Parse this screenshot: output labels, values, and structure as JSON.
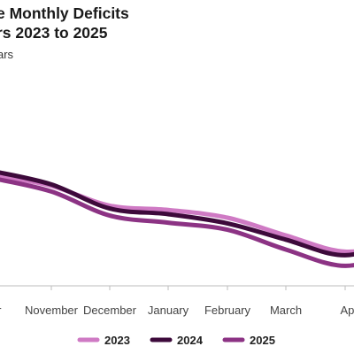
{
  "title_lines": [
    "e Monthly Deficits",
    "rs 2023 to 2025"
  ],
  "subtitle": "ars",
  "chart_data": {
    "type": "line",
    "title": "e Monthly Deficits rs 2023 to 2025",
    "subtitle": "ars",
    "categories": [
      "ber",
      "November",
      "December",
      "January",
      "February",
      "March",
      "Apri"
    ],
    "series": [
      {
        "name": "2023",
        "color": "#cf7ac4",
        "values": [
          100,
          72,
          66,
          55,
          30,
          7,
          20
        ]
      },
      {
        "name": "2024",
        "color": "#3d0a3b",
        "values": [
          102,
          68,
          60,
          47,
          24,
          2,
          26
        ]
      },
      {
        "name": "2025",
        "color": "#8c3384",
        "values": [
          92,
          58,
          48,
          38,
          10,
          -13,
          8
        ]
      }
    ],
    "grid": false,
    "legend": "bottom"
  }
}
